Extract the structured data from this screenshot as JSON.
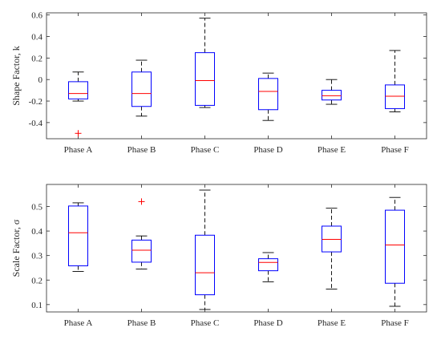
{
  "colors": {
    "box": "#0000ff",
    "median": "#ff0000",
    "whisker": "#000000",
    "outlier": "#ff0000",
    "axis": "#262626",
    "tick_text": "#262626"
  },
  "chart_data": [
    {
      "type": "box",
      "ylabel": "Shape Factor, k",
      "ylim": [
        -0.55,
        0.62
      ],
      "yticks": [
        -0.4,
        -0.2,
        0,
        0.2,
        0.4,
        0.6
      ],
      "ytick_labels": [
        "-0.4",
        "-0.2",
        "0",
        "0.2",
        "0.4",
        "0.6"
      ],
      "grid": false,
      "categories": [
        "Phase A",
        "Phase B",
        "Phase C",
        "Phase D",
        "Phase E",
        "Phase F"
      ],
      "boxes": [
        {
          "whisker_low": -0.2,
          "q1": -0.18,
          "median": -0.13,
          "q3": -0.02,
          "whisker_high": 0.07,
          "outliers": [
            -0.5
          ]
        },
        {
          "whisker_low": -0.34,
          "q1": -0.25,
          "median": -0.13,
          "q3": 0.07,
          "whisker_high": 0.18,
          "outliers": []
        },
        {
          "whisker_low": -0.26,
          "q1": -0.24,
          "median": -0.01,
          "q3": 0.25,
          "whisker_high": 0.57,
          "outliers": []
        },
        {
          "whisker_low": -0.38,
          "q1": -0.28,
          "median": -0.11,
          "q3": 0.01,
          "whisker_high": 0.06,
          "outliers": []
        },
        {
          "whisker_low": -0.23,
          "q1": -0.19,
          "median": -0.15,
          "q3": -0.1,
          "whisker_high": 0.0,
          "outliers": []
        },
        {
          "whisker_low": -0.3,
          "q1": -0.27,
          "median": -0.155,
          "q3": -0.05,
          "whisker_high": 0.27,
          "outliers": []
        }
      ]
    },
    {
      "type": "box",
      "ylabel": "Scale Factor, σ",
      "ylim": [
        0.07,
        0.59
      ],
      "yticks": [
        0.1,
        0.2,
        0.3,
        0.4,
        0.5
      ],
      "ytick_labels": [
        "0.1",
        "0.2",
        "0.3",
        "0.4",
        "0.5"
      ],
      "grid": false,
      "categories": [
        "Phase A",
        "Phase B",
        "Phase C",
        "Phase D",
        "Phase E",
        "Phase F"
      ],
      "boxes": [
        {
          "whisker_low": 0.235,
          "q1": 0.258,
          "median": 0.393,
          "q3": 0.502,
          "whisker_high": 0.515,
          "outliers": []
        },
        {
          "whisker_low": 0.245,
          "q1": 0.273,
          "median": 0.322,
          "q3": 0.363,
          "whisker_high": 0.38,
          "outliers": [
            0.52
          ]
        },
        {
          "whisker_low": 0.08,
          "q1": 0.14,
          "median": 0.23,
          "q3": 0.383,
          "whisker_high": 0.567,
          "outliers": []
        },
        {
          "whisker_low": 0.193,
          "q1": 0.238,
          "median": 0.272,
          "q3": 0.287,
          "whisker_high": 0.312,
          "outliers": []
        },
        {
          "whisker_low": 0.163,
          "q1": 0.315,
          "median": 0.366,
          "q3": 0.42,
          "whisker_high": 0.493,
          "outliers": []
        },
        {
          "whisker_low": 0.093,
          "q1": 0.187,
          "median": 0.343,
          "q3": 0.485,
          "whisker_high": 0.537,
          "outliers": []
        }
      ]
    }
  ]
}
